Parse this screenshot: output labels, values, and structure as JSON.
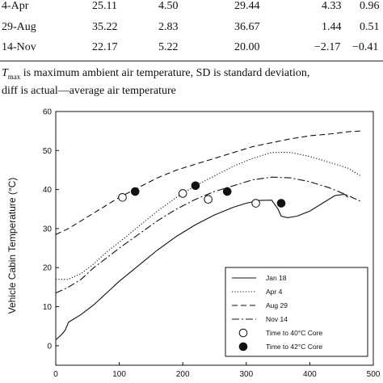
{
  "table": {
    "rows": [
      {
        "date": "4-Apr",
        "c1": "25.11",
        "c2": "4.50",
        "c3": "29.44",
        "c4": "4.33",
        "c5": "0.96"
      },
      {
        "date": "29-Aug",
        "c1": "35.22",
        "c2": "2.83",
        "c3": "36.67",
        "c4": "1.44",
        "c5": "0.51"
      },
      {
        "date": "14-Nov",
        "c1": "22.17",
        "c2": "5.22",
        "c3": "20.00",
        "c4": "−2.17",
        "c5": "−0.41"
      }
    ]
  },
  "footnote": {
    "tmax_symbol": "T",
    "tmax_sub": "max",
    "line1_rest": " is maximum ambient air temperature, SD is standard deviation,",
    "line2": "diff is actual—average air temperature"
  },
  "chart_data": {
    "type": "line",
    "title": "",
    "xlabel": "",
    "ylabel": "Vehicle Cabin Temperature (°C)",
    "xlim": [
      0,
      500
    ],
    "ylim": [
      -5,
      60
    ],
    "xticks": [
      0,
      100,
      200,
      300,
      400,
      500
    ],
    "yticks": [
      0,
      10,
      20,
      30,
      40,
      50,
      60
    ],
    "legend_position": "bottom-right",
    "series": [
      {
        "name": "Jan 18",
        "style": "solid",
        "x": [
          0,
          10,
          15,
          20,
          25,
          40,
          60,
          80,
          100,
          130,
          160,
          190,
          220,
          250,
          280,
          300,
          320,
          340,
          350,
          355,
          365,
          380,
          400,
          420,
          440,
          455,
          460
        ],
        "y": [
          1.5,
          3,
          4,
          6,
          6.5,
          8,
          10.5,
          13.5,
          16.5,
          20.5,
          24.5,
          28,
          31,
          33.5,
          35.5,
          36.5,
          37.2,
          37.3,
          35,
          33.2,
          32.8,
          33.2,
          34.5,
          36.5,
          38.5,
          38.8,
          38
        ]
      },
      {
        "name": "Apr 4",
        "style": "dotted",
        "x": [
          0,
          20,
          40,
          60,
          80,
          100,
          130,
          160,
          190,
          220,
          250,
          280,
          310,
          340,
          370,
          400,
          430,
          460,
          480
        ],
        "y": [
          17,
          17,
          18.5,
          21,
          24,
          26.5,
          30.5,
          34.5,
          38,
          41,
          43.5,
          46,
          48,
          49.5,
          49.5,
          48.5,
          47,
          45.5,
          43.5
        ]
      },
      {
        "name": "Aug 29",
        "style": "dashed",
        "x": [
          0,
          20,
          40,
          60,
          80,
          100,
          130,
          160,
          190,
          220,
          250,
          280,
          310,
          340,
          370,
          400,
          430,
          460,
          480
        ],
        "y": [
          28.5,
          30,
          32,
          34,
          36,
          38,
          40.5,
          43,
          45,
          46.5,
          48,
          49.5,
          51,
          52,
          53,
          53.8,
          54.2,
          54.8,
          55
        ]
      },
      {
        "name": "Nov 14",
        "style": "dashdot",
        "x": [
          0,
          20,
          40,
          60,
          80,
          100,
          130,
          160,
          190,
          220,
          250,
          280,
          310,
          340,
          370,
          400,
          430,
          460,
          480
        ],
        "y": [
          13.5,
          15,
          17,
          20,
          22.5,
          25,
          28.5,
          32,
          35,
          37.5,
          39.5,
          41,
          42.5,
          43.2,
          43,
          42,
          40.5,
          38.5,
          37
        ]
      },
      {
        "name": "Time to 40°C Core",
        "style": "open-marker",
        "x": [
          105,
          200,
          240,
          315
        ],
        "y": [
          38,
          39,
          37.5,
          36.5
        ]
      },
      {
        "name": "Time to 42°C Core",
        "style": "filled-marker",
        "x": [
          125,
          220,
          270,
          355
        ],
        "y": [
          39.5,
          41,
          39.5,
          36.5
        ]
      }
    ]
  },
  "colors": {
    "ink": "#111111",
    "background": "#ffffff"
  }
}
